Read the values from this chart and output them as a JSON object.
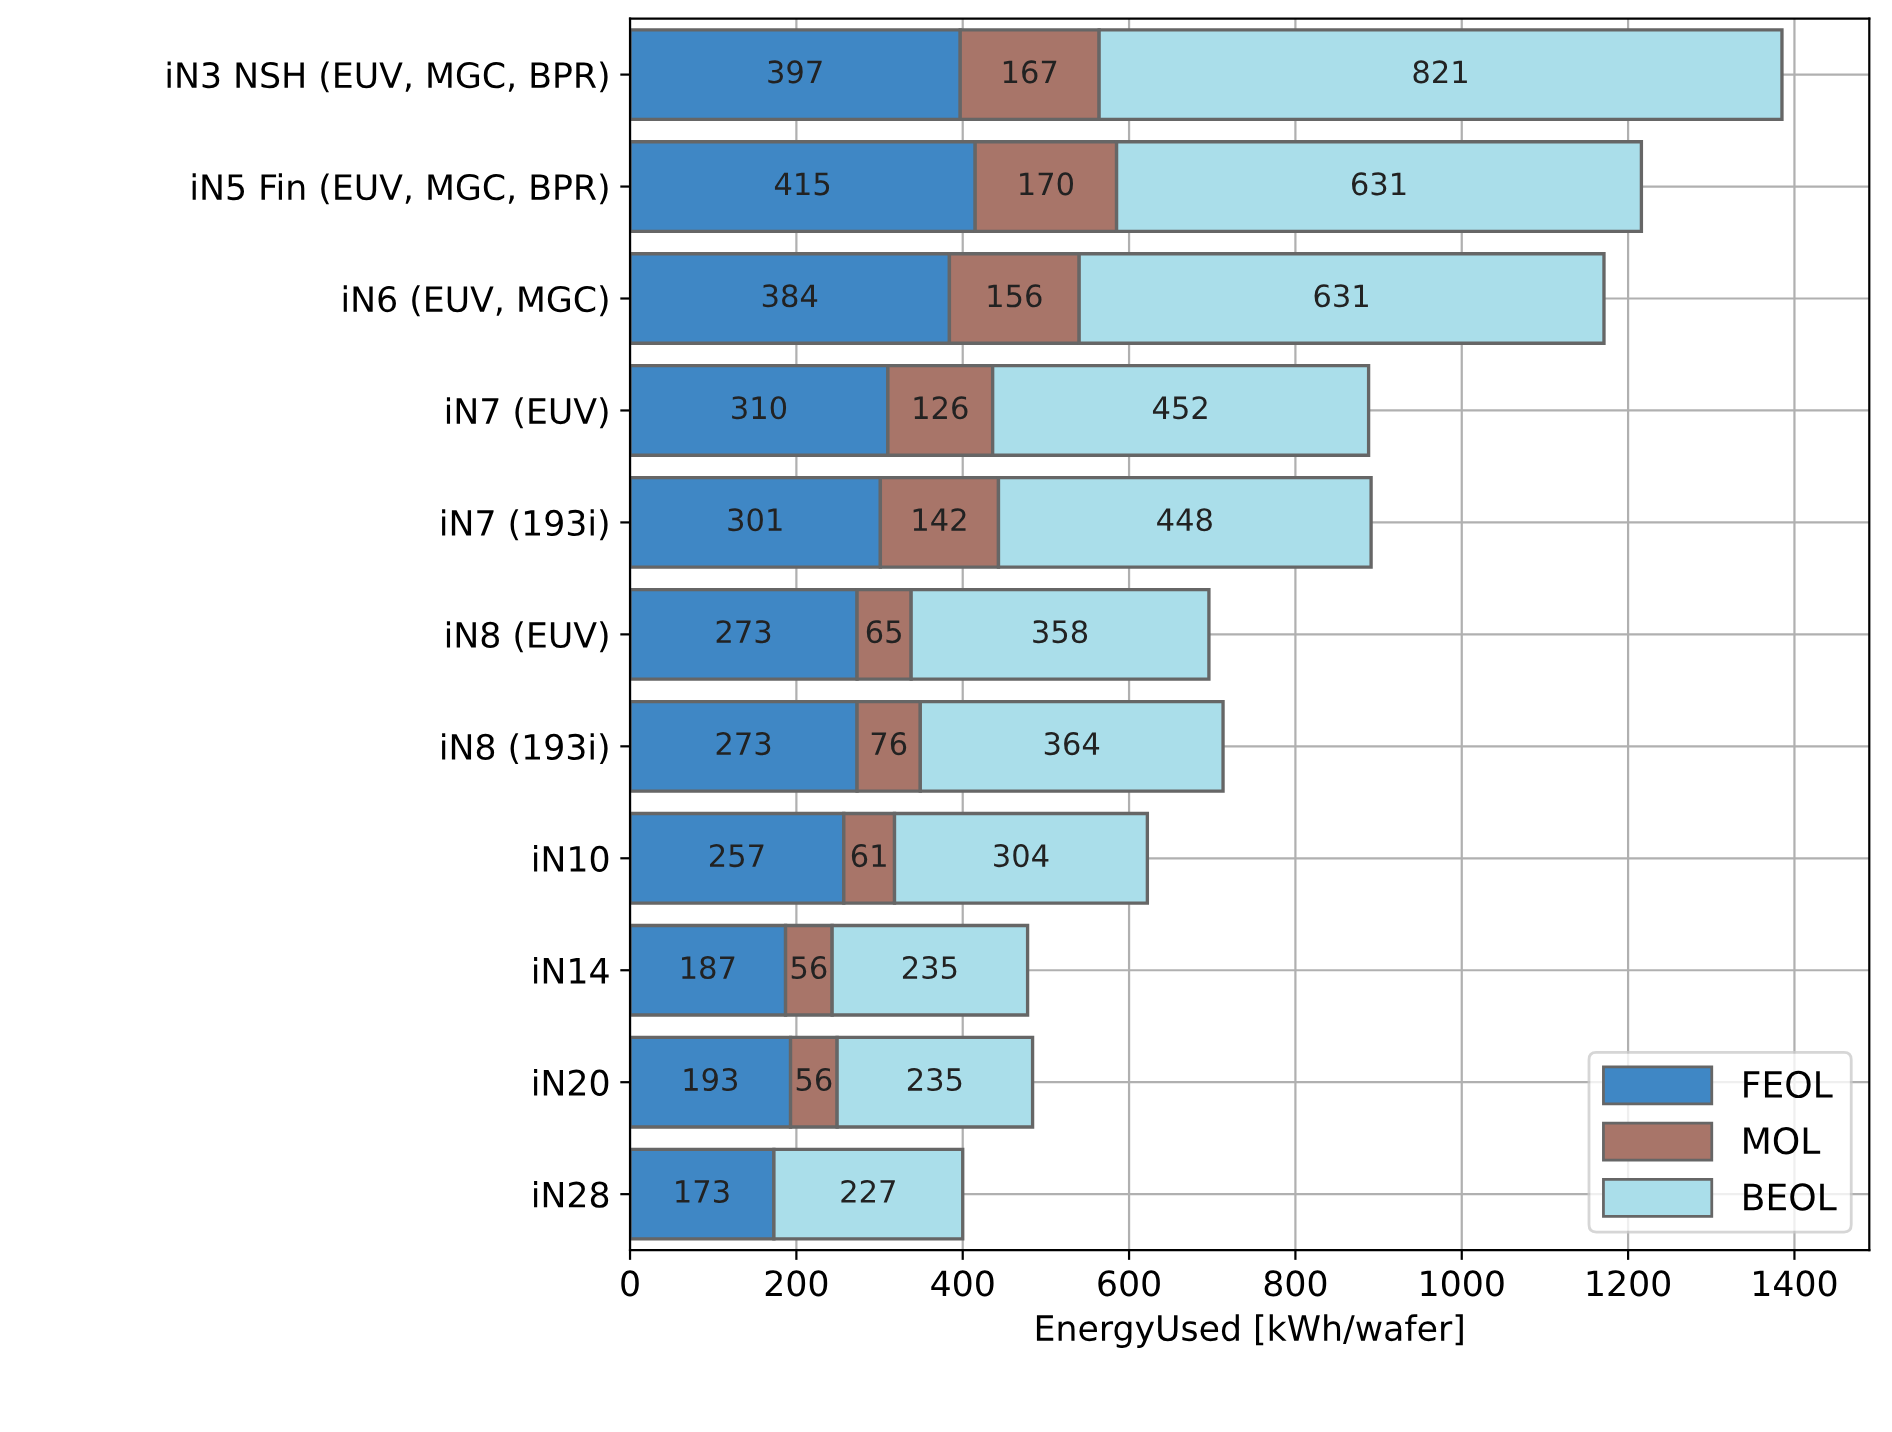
{
  "chart_data": {
    "type": "bar",
    "orientation": "horizontal",
    "stacked": true,
    "categories": [
      "iN3 NSH (EUV, MGC, BPR)",
      "iN5 Fin (EUV, MGC, BPR)",
      "iN6 (EUV, MGC)",
      "iN7 (EUV)",
      "iN7 (193i)",
      "iN8 (EUV)",
      "iN8 (193i)",
      "iN10",
      "iN14",
      "iN20",
      "iN28"
    ],
    "series": [
      {
        "name": "FEOL",
        "color": "#3f87c5",
        "values": [
          397,
          415,
          384,
          310,
          301,
          273,
          273,
          257,
          187,
          193,
          173
        ]
      },
      {
        "name": "MOL",
        "color": "#a87569",
        "values": [
          167,
          170,
          156,
          126,
          142,
          65,
          76,
          61,
          56,
          56,
          null
        ]
      },
      {
        "name": "BEOL",
        "color": "#aadeea",
        "values": [
          821,
          631,
          631,
          452,
          448,
          358,
          364,
          304,
          235,
          235,
          227
        ]
      }
    ],
    "xlabel": "EnergyUsed [kWh/wafer]",
    "xlim": [
      0,
      1490
    ],
    "xticks": [
      0,
      200,
      400,
      600,
      800,
      1000,
      1200,
      1400
    ],
    "grid": true,
    "legend": "bottom right",
    "data_labels": true
  }
}
